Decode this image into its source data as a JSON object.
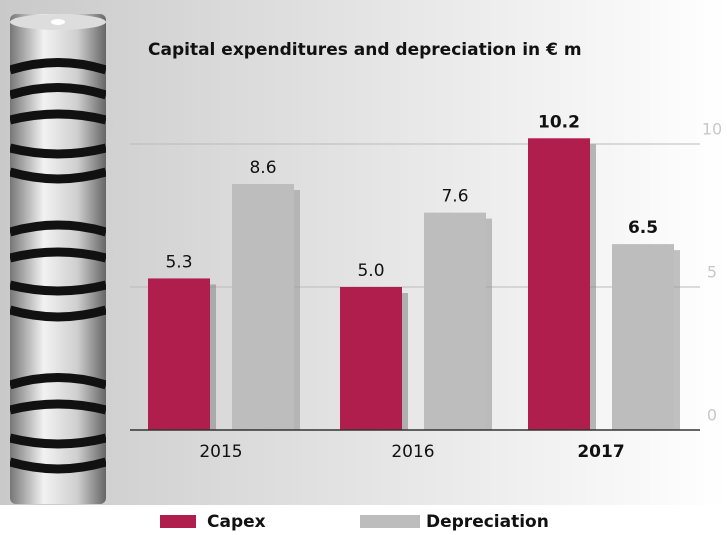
{
  "chart_data": {
    "type": "bar",
    "title": "Capital expenditures and depreciation in € m",
    "categories": [
      "2015",
      "2016",
      "2017"
    ],
    "emphasis_category_index": 2,
    "series": [
      {
        "name": "Capex",
        "color": "#b01e4e",
        "values": [
          5.3,
          5.0,
          10.2
        ],
        "value_labels": [
          "5.3",
          "5.0",
          "10.2"
        ]
      },
      {
        "name": "Depreciation",
        "color": "#bdbdbd",
        "values": [
          8.6,
          7.6,
          6.5
        ],
        "value_labels": [
          "8.6",
          "7.6",
          "6.5"
        ]
      }
    ],
    "ylim": [
      0,
      10
    ],
    "yticks": [
      0,
      5,
      10
    ],
    "grid": true
  }
}
